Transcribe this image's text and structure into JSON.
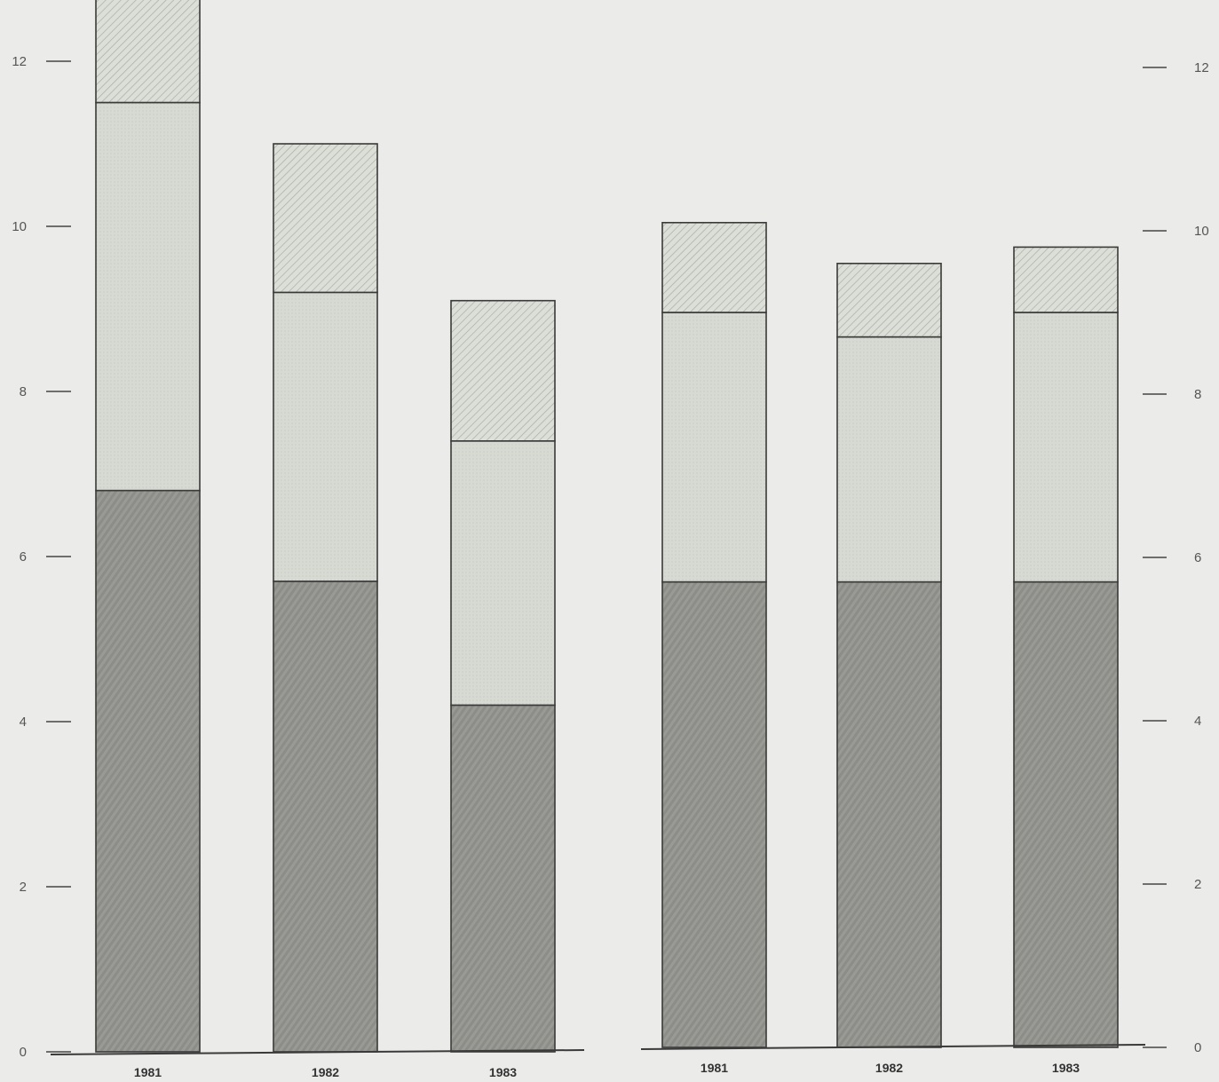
{
  "colors": {
    "background": "#ebece9",
    "segment_dark": "#8c8c88",
    "segment_light": "#d6dad2",
    "segment_hatched": "#dcdfd8",
    "outline": "#3a3a3a"
  },
  "chart_data": [
    {
      "type": "bar",
      "stacked": true,
      "categories": [
        "1981",
        "1982",
        "1983"
      ],
      "series": [
        {
          "pattern": "dark-textured",
          "values": [
            6.8,
            5.7,
            4.2
          ]
        },
        {
          "pattern": "light-dotted",
          "values": [
            4.7,
            3.5,
            3.2
          ]
        },
        {
          "pattern": "hatched",
          "values": [
            1.3,
            1.8,
            1.7
          ]
        }
      ],
      "yticks": [
        "0",
        "2",
        "4",
        "6",
        "8",
        "10",
        "12"
      ],
      "ylim": [
        0,
        12.8
      ],
      "y_axis_side": "left",
      "grid": false
    },
    {
      "type": "bar",
      "stacked": true,
      "categories": [
        "1981",
        "1982",
        "1983"
      ],
      "series": [
        {
          "pattern": "dark-textured",
          "values": [
            5.7,
            5.7,
            5.7
          ]
        },
        {
          "pattern": "light-dotted",
          "values": [
            3.3,
            3.0,
            3.3
          ]
        },
        {
          "pattern": "hatched",
          "values": [
            1.1,
            0.9,
            0.8
          ]
        }
      ],
      "yticks": [
        "0",
        "2",
        "4",
        "6",
        "8",
        "10",
        "12"
      ],
      "ylim": [
        0,
        12.8
      ],
      "y_axis_side": "right",
      "grid": false
    }
  ]
}
